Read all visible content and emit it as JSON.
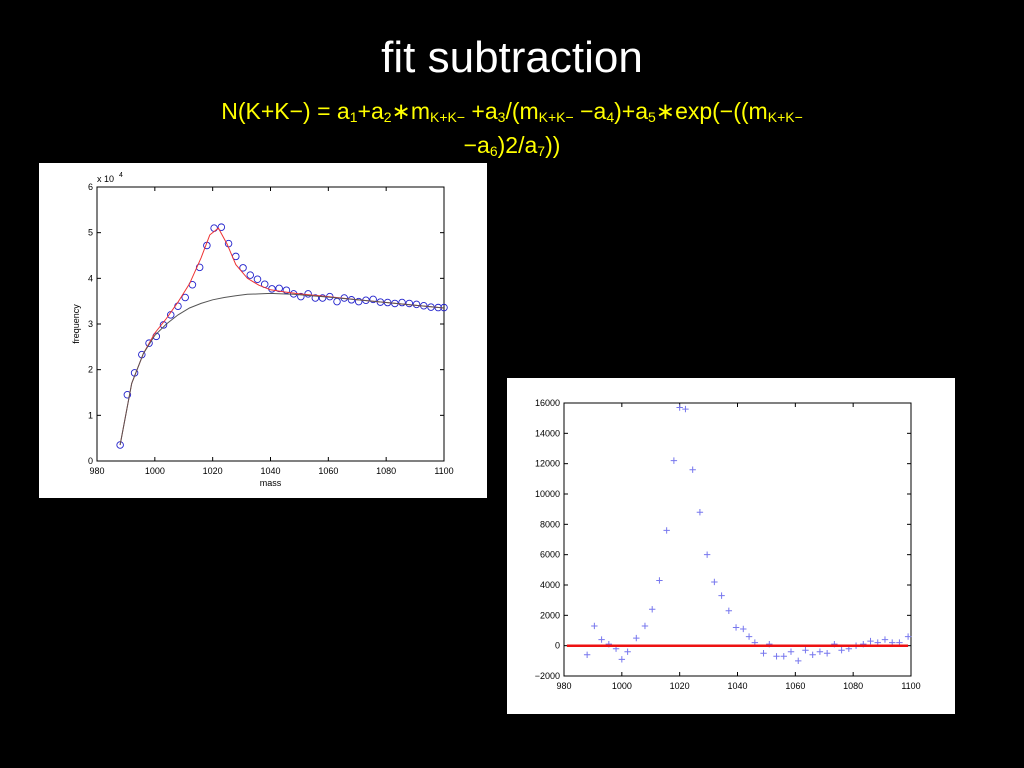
{
  "slide": {
    "title": "fit subtraction",
    "formula": {
      "line1": [
        {
          "t": "N(K+K−) = a"
        },
        {
          "sub": "1"
        },
        {
          "t": "+a"
        },
        {
          "sub": "2"
        },
        {
          "t": "∗m"
        },
        {
          "sub": "K+K−"
        },
        {
          "t": " +a"
        },
        {
          "sub": "3"
        },
        {
          "t": "/(m"
        },
        {
          "sub": "K+K−"
        },
        {
          "t": " −a"
        },
        {
          "sub": "4"
        },
        {
          "t": ")+a"
        },
        {
          "sub": "5"
        },
        {
          "t": "∗exp(−((m"
        },
        {
          "sub": "K+K−"
        }
      ],
      "line2": [
        {
          "t": "−a"
        },
        {
          "sub": "6"
        },
        {
          "t": ")2/a"
        },
        {
          "sub": "7"
        },
        {
          "t": "))"
        }
      ]
    }
  },
  "chart_data": [
    {
      "type": "scatter",
      "title": "",
      "xlabel": "mass",
      "ylabel": "frequency",
      "y_multiplier_label": "x 10",
      "y_multiplier_exp": "4",
      "xlim": [
        980,
        1100
      ],
      "ylim": [
        0,
        6
      ],
      "x_ticks": [
        "980",
        "1000",
        "1020",
        "1040",
        "1060",
        "1080",
        "1100"
      ],
      "y_ticks": [
        "0",
        "1",
        "2",
        "3",
        "4",
        "5",
        "6"
      ],
      "grid": false,
      "colors": {
        "points": "#2222cc",
        "fit": "#ee3333",
        "background": "#555555"
      },
      "series": [
        {
          "kind": "points",
          "x": [
            988,
            990.5,
            993,
            995.5,
            998,
            1000.5,
            1003,
            1005.5,
            1008,
            1010.5,
            1013,
            1015.5,
            1018,
            1020.5,
            1023,
            1025.5,
            1028,
            1030.5,
            1033,
            1035.5,
            1038,
            1040.5,
            1043,
            1045.5,
            1048,
            1050.5,
            1053,
            1055.5,
            1058,
            1060.5,
            1063,
            1065.5,
            1068,
            1070.5,
            1073,
            1075.5,
            1078,
            1080.5,
            1083,
            1085.5,
            1088,
            1090.5,
            1093,
            1095.5,
            1098,
            1100
          ],
          "y": [
            0.35,
            1.45,
            1.93,
            2.33,
            2.58,
            2.73,
            2.98,
            3.2,
            3.39,
            3.58,
            3.86,
            4.24,
            4.72,
            5.1,
            5.12,
            4.76,
            4.48,
            4.23,
            4.07,
            3.98,
            3.87,
            3.77,
            3.78,
            3.74,
            3.66,
            3.6,
            3.66,
            3.57,
            3.57,
            3.6,
            3.49,
            3.57,
            3.53,
            3.49,
            3.52,
            3.54,
            3.48,
            3.47,
            3.45,
            3.47,
            3.45,
            3.43,
            3.4,
            3.37,
            3.36,
            3.36
          ]
        },
        {
          "kind": "fit-line",
          "x": [
            988,
            992,
            996,
            1000,
            1004,
            1008,
            1012,
            1016,
            1019,
            1022,
            1025,
            1028,
            1032,
            1036,
            1040,
            1045,
            1050,
            1060,
            1070,
            1080,
            1090,
            1100
          ],
          "y": [
            0.35,
            1.7,
            2.35,
            2.8,
            3.12,
            3.48,
            3.88,
            4.45,
            4.95,
            5.1,
            4.75,
            4.3,
            4.0,
            3.85,
            3.75,
            3.7,
            3.66,
            3.6,
            3.53,
            3.47,
            3.41,
            3.35
          ]
        },
        {
          "kind": "background-line",
          "x": [
            988,
            992,
            996,
            1000,
            1004,
            1008,
            1012,
            1016,
            1020,
            1024,
            1028,
            1032,
            1036,
            1040,
            1044,
            1048,
            1052,
            1060,
            1070,
            1080,
            1090,
            1100
          ],
          "y": [
            0.35,
            1.7,
            2.35,
            2.75,
            3.0,
            3.2,
            3.35,
            3.45,
            3.53,
            3.58,
            3.62,
            3.65,
            3.66,
            3.67,
            3.66,
            3.65,
            3.63,
            3.59,
            3.53,
            3.47,
            3.41,
            3.35
          ]
        }
      ]
    },
    {
      "type": "scatter",
      "title": "",
      "xlabel": "",
      "ylabel": "",
      "xlim": [
        980,
        1100
      ],
      "ylim": [
        -2000,
        16000
      ],
      "x_ticks": [
        "980",
        "1000",
        "1020",
        "1040",
        "1060",
        "1080",
        "1100"
      ],
      "y_ticks": [
        "−2000",
        "0",
        "2000",
        "4000",
        "6000",
        "8000",
        "10000",
        "12000",
        "14000",
        "16000"
      ],
      "grid": false,
      "colors": {
        "points": "#7777ee",
        "zero_line": "#ee1111"
      },
      "series": [
        {
          "kind": "points-plus",
          "x": [
            988,
            990.5,
            993,
            995.5,
            998,
            1000,
            1002,
            1005,
            1008,
            1010.5,
            1013,
            1015.5,
            1018,
            1020,
            1022,
            1024.5,
            1027,
            1029.5,
            1032,
            1034.5,
            1037,
            1039.5,
            1042,
            1044,
            1046,
            1049,
            1051,
            1053.5,
            1056,
            1058.5,
            1061,
            1063.5,
            1066,
            1068.5,
            1071,
            1073.5,
            1076,
            1078.5,
            1081,
            1083.5,
            1086,
            1088.5,
            1091,
            1093.5,
            1096,
            1099
          ],
          "y": [
            -600,
            1300,
            400,
            100,
            -200,
            -900,
            -400,
            500,
            1300,
            2400,
            4300,
            7600,
            12200,
            15700,
            15600,
            11600,
            8800,
            6000,
            4200,
            3300,
            2300,
            1200,
            1100,
            600,
            200,
            -500,
            100,
            -700,
            -700,
            -400,
            -1000,
            -300,
            -600,
            -400,
            -500,
            100,
            -300,
            -200,
            0,
            100,
            300,
            200,
            400,
            200,
            200,
            600
          ]
        },
        {
          "kind": "zero-line",
          "x": [
            981,
            1099
          ],
          "y": [
            0,
            0
          ]
        }
      ]
    }
  ]
}
